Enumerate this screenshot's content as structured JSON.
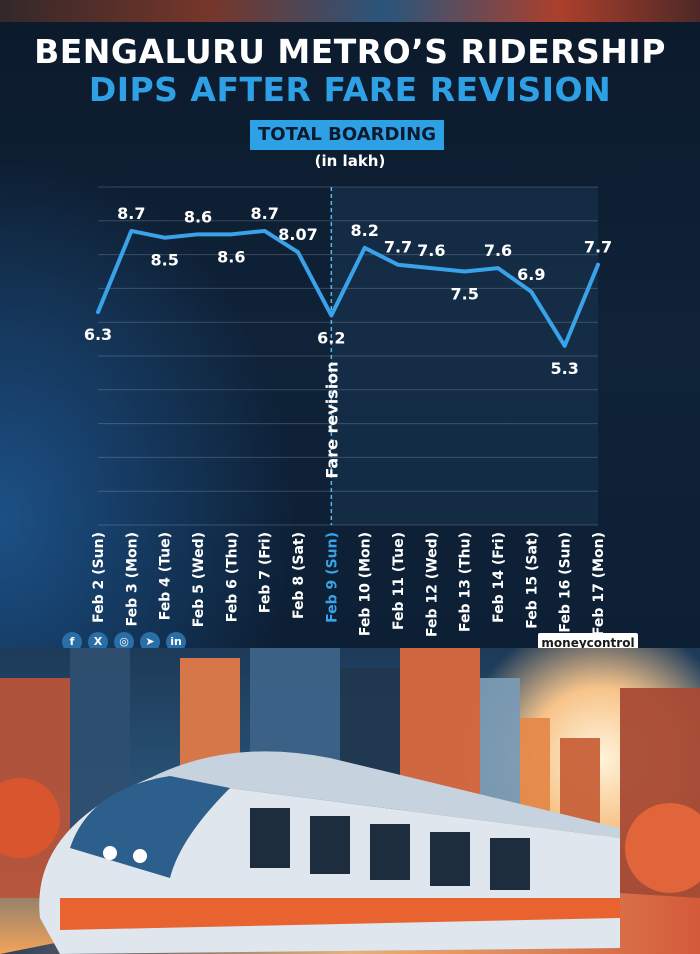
{
  "header": {
    "title_line1": "BENGALURU METRO’S RIDERSHIP",
    "title_line2": "DIPS AFTER FARE REVISION",
    "badge": "TOTAL BOARDING",
    "unit": "(in lakh)"
  },
  "chart_data": {
    "type": "line",
    "categories": [
      "Feb 2 (Sun)",
      "Feb 3 (Mon)",
      "Feb 4 (Tue)",
      "Feb 5 (Wed)",
      "Feb 6 (Thu)",
      "Feb 7 (Fri)",
      "Feb 8 (Sat)",
      "Feb 9 (Sun)",
      "Feb 10 (Mon)",
      "Feb 11 (Tue)",
      "Feb 12 (Wed)",
      "Feb 13 (Thu)",
      "Feb 14 (Fri)",
      "Feb 15 (Sat)",
      "Feb 16 (Sun)",
      "Feb 17 (Mon)"
    ],
    "values": [
      6.3,
      8.7,
      8.5,
      8.6,
      8.6,
      8.7,
      8.07,
      6.2,
      8.2,
      7.7,
      7.6,
      7.5,
      7.6,
      6.9,
      5.3,
      7.7
    ],
    "value_labels": [
      "6.3",
      "8.7",
      "8.5",
      "8.6",
      "8.6",
      "8.7",
      "8.07",
      "6.2",
      "8.2",
      "7.7",
      "7.6",
      "7.5",
      "7.6",
      "6.9",
      "5.3",
      "7.7"
    ],
    "label_position": [
      "below",
      "above",
      "below",
      "above",
      "below",
      "above",
      "above",
      "below",
      "above",
      "above",
      "above",
      "below",
      "above",
      "above",
      "below",
      "above"
    ],
    "ylim": [
      0,
      10
    ],
    "grid": true,
    "annotation": {
      "category_index": 7,
      "text": "Fare revision"
    },
    "highlight_category_index": 7,
    "colors": {
      "line": "#3aa2e8",
      "highlight_label": "#3aa2e8",
      "label": "#ffffff"
    }
  },
  "footer": {
    "socials": [
      {
        "icon": "facebook-icon",
        "glyph": "f"
      },
      {
        "icon": "x-icon",
        "glyph": "X"
      },
      {
        "icon": "instagram-icon",
        "glyph": "◎"
      },
      {
        "icon": "telegram-icon",
        "glyph": "➤"
      },
      {
        "icon": "linkedin-icon",
        "glyph": "in"
      }
    ],
    "brand": "moneycontrol"
  }
}
